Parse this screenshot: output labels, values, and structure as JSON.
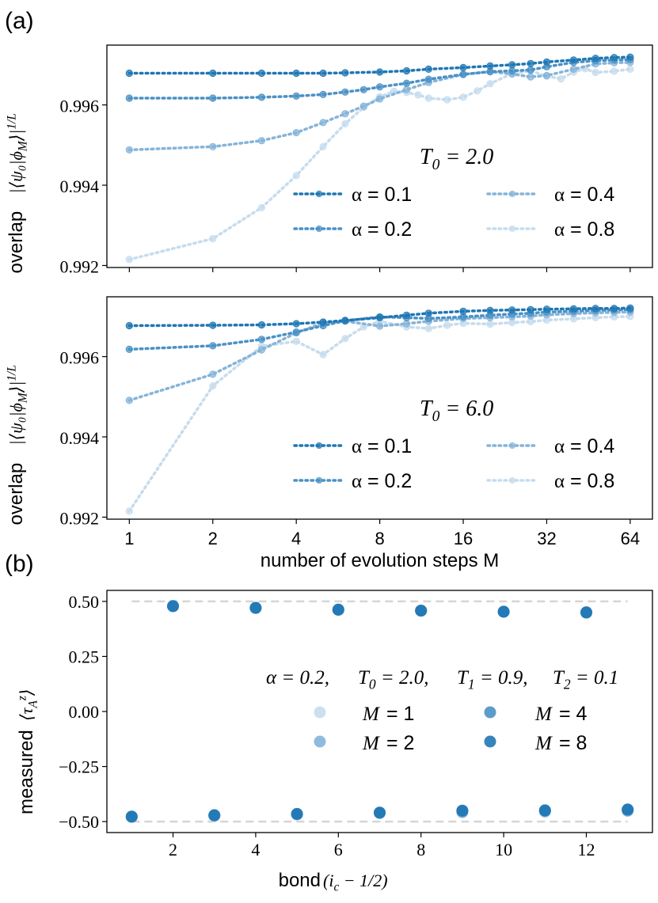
{
  "figure": {
    "panel_a_label": "(a)",
    "panel_b_label": "(b)",
    "colors": {
      "series": [
        "#1f77b4",
        "#4a91c5",
        "#85b4d9",
        "#c6dcee"
      ],
      "axis": "#000000",
      "dashed": "#d5d5d5"
    }
  },
  "chart_data": [
    {
      "id": "a1",
      "type": "line",
      "xscale": "log2",
      "xlim": [
        0.83,
        77
      ],
      "ylim": [
        0.99195,
        0.99749
      ],
      "x_ticks": [
        1,
        2,
        4,
        8,
        16,
        32,
        64
      ],
      "x_tick_labels": [
        "",
        "",
        "",
        "",
        "",
        "",
        ""
      ],
      "y_ticks": [
        0.992,
        0.994,
        0.996
      ],
      "y_tick_labels": [
        "0.992",
        "0.994",
        "0.996"
      ],
      "ylabel_text": "overlap ",
      "ylabel_math": "|⟨ψ₀|ϕ_M⟩|^{1/L}",
      "legend_title": "T_0 = 2.0",
      "legend_placement": "lower-right",
      "series": [
        {
          "name": "α = 0.1",
          "label_math": "α",
          "label_value": "= 0.1",
          "color": "#1f77b4",
          "x": [
            1,
            2,
            3,
            4,
            5,
            6,
            8,
            10,
            12,
            16,
            20,
            24,
            28,
            32,
            40,
            48,
            56,
            64
          ],
          "y": [
            0.99679,
            0.99679,
            0.99679,
            0.99679,
            0.99679,
            0.9968,
            0.99682,
            0.99685,
            0.99689,
            0.99693,
            0.99697,
            0.997,
            0.99703,
            0.99707,
            0.99712,
            0.99716,
            0.99718,
            0.99719
          ]
        },
        {
          "name": "α = 0.2",
          "label_math": "α",
          "label_value": "= 0.2",
          "color": "#4a91c5",
          "x": [
            1,
            2,
            3,
            4,
            5,
            6,
            7,
            8,
            10,
            12,
            16,
            20,
            24,
            28,
            32,
            40,
            48,
            56,
            64
          ],
          "y": [
            0.99617,
            0.99617,
            0.99619,
            0.99622,
            0.99626,
            0.99632,
            0.99638,
            0.99645,
            0.99654,
            0.99664,
            0.99676,
            0.99683,
            0.99685,
            0.99687,
            0.99695,
            0.99706,
            0.9971,
            0.99712,
            0.99713
          ]
        },
        {
          "name": "α = 0.4",
          "label_math": "α",
          "label_value": "= 0.4",
          "color": "#85b4d9",
          "x": [
            1,
            2,
            3,
            4,
            5,
            6,
            7,
            8,
            10,
            12,
            16,
            20,
            24,
            28,
            32,
            40,
            48,
            56,
            64
          ],
          "y": [
            0.99488,
            0.99496,
            0.99511,
            0.99531,
            0.99556,
            0.99578,
            0.99597,
            0.99615,
            0.99638,
            0.99656,
            0.99676,
            0.99683,
            0.99677,
            0.9967,
            0.99673,
            0.99689,
            0.99702,
            0.99705,
            0.99706
          ]
        },
        {
          "name": "α = 0.8",
          "label_math": "α",
          "label_value": "= 0.8",
          "color": "#c6dcee",
          "x": [
            1,
            2,
            3,
            4,
            5,
            6,
            7,
            8,
            9,
            10,
            11,
            12,
            14,
            16,
            18,
            20,
            24,
            28,
            32,
            36,
            40,
            44,
            48,
            56,
            64
          ],
          "y": [
            0.99215,
            0.99267,
            0.99344,
            0.99424,
            0.99496,
            0.99553,
            0.99594,
            0.9962,
            0.99634,
            0.99631,
            0.99625,
            0.99617,
            0.99613,
            0.99619,
            0.99635,
            0.99653,
            0.99678,
            0.99685,
            0.99672,
            0.99665,
            0.99682,
            0.9969,
            0.99681,
            0.99684,
            0.99689
          ]
        }
      ]
    },
    {
      "id": "a2",
      "type": "line",
      "xscale": "log2",
      "xlim": [
        0.83,
        77
      ],
      "ylim": [
        0.99195,
        0.99749
      ],
      "x_ticks": [
        1,
        2,
        4,
        8,
        16,
        32,
        64
      ],
      "x_tick_labels": [
        "1",
        "2",
        "4",
        "8",
        "16",
        "32",
        "64"
      ],
      "y_ticks": [
        0.992,
        0.994,
        0.996
      ],
      "y_tick_labels": [
        "0.992",
        "0.994",
        "0.996"
      ],
      "xlabel": "number of evolution steps M",
      "ylabel_text": "overlap ",
      "ylabel_math": "|⟨ψ₀|ϕ_M⟩|^{1/L}",
      "legend_title": "T_0 = 6.0",
      "legend_placement": "lower-right",
      "series": [
        {
          "name": "α = 0.1",
          "label_math": "α",
          "label_value": "= 0.1",
          "color": "#1f77b4",
          "x": [
            1,
            2,
            3,
            4,
            5,
            6,
            8,
            10,
            12,
            16,
            20,
            24,
            28,
            32,
            40,
            48,
            56,
            64
          ],
          "y": [
            0.99677,
            0.99678,
            0.99679,
            0.99682,
            0.99686,
            0.9969,
            0.99697,
            0.99703,
            0.99708,
            0.99713,
            0.99715,
            0.99716,
            0.99717,
            0.99718,
            0.99719,
            0.9972,
            0.9972,
            0.99721
          ]
        },
        {
          "name": "α = 0.2",
          "label_math": "α",
          "label_value": "= 0.2",
          "color": "#4a91c5",
          "x": [
            1,
            2,
            3,
            4,
            5,
            6,
            8,
            10,
            12,
            16,
            20,
            24,
            28,
            32,
            40,
            48,
            56,
            64
          ],
          "y": [
            0.99618,
            0.99627,
            0.99643,
            0.99661,
            0.99677,
            0.99689,
            0.99699,
            0.99697,
            0.99695,
            0.99699,
            0.99703,
            0.99706,
            0.99708,
            0.99711,
            0.99713,
            0.99715,
            0.99716,
            0.99717
          ]
        },
        {
          "name": "α = 0.4",
          "label_math": "α",
          "label_value": "= 0.4",
          "color": "#85b4d9",
          "x": [
            1,
            2,
            3,
            4,
            5,
            6,
            8,
            10,
            12,
            16,
            20,
            24,
            28,
            32,
            40,
            48,
            56,
            64
          ],
          "y": [
            0.99491,
            0.99556,
            0.99617,
            0.99659,
            0.99684,
            0.99688,
            0.99676,
            0.99682,
            0.99688,
            0.99695,
            0.99697,
            0.99699,
            0.99701,
            0.99704,
            0.99707,
            0.99709,
            0.9971,
            0.99711
          ]
        },
        {
          "name": "α = 0.8",
          "label_math": "α",
          "label_value": "= 0.8",
          "color": "#c6dcee",
          "x": [
            1,
            2,
            3,
            4,
            5,
            6,
            7,
            8,
            10,
            12,
            14,
            16,
            20,
            24,
            28,
            32,
            40,
            48,
            56,
            64
          ],
          "y": [
            0.99215,
            0.99527,
            0.99626,
            0.99638,
            0.99605,
            0.99645,
            0.99674,
            0.99688,
            0.99674,
            0.9967,
            0.99678,
            0.99683,
            0.99681,
            0.99685,
            0.99687,
            0.99691,
            0.99694,
            0.99697,
            0.99699,
            0.997
          ]
        }
      ]
    },
    {
      "id": "b",
      "type": "scatter",
      "xlim": [
        0.4,
        13.6
      ],
      "ylim": [
        -0.55,
        0.55
      ],
      "x_ticks": [
        2,
        4,
        6,
        8,
        10,
        12
      ],
      "x_tick_labels": [
        "2",
        "4",
        "6",
        "8",
        "10",
        "12"
      ],
      "y_ticks": [
        -0.5,
        -0.25,
        0,
        0.25,
        0.5
      ],
      "y_tick_labels": [
        "−0.50",
        "−0.25",
        "0.00",
        "0.25",
        "0.50"
      ],
      "xlabel_text": "bond ",
      "xlabel_math": "(i_c − 1/2)",
      "ylabel_text": "measured ",
      "ylabel_math": "⟨τ_A^z⟩",
      "reference_lines": [
        0.5,
        -0.5
      ],
      "legend_title_parts": [
        "α = 0.2, ",
        "T_0 = 2.0, ",
        "T_1 = 0.9, ",
        "T_2 = 0.1"
      ],
      "legend_placement": "center-right",
      "series": [
        {
          "name": "M = 1",
          "label_math": "M",
          "label_value": "= 1",
          "color": "#c6dcee",
          "x": [
            1,
            2,
            3,
            4,
            5,
            6,
            7,
            8,
            9,
            10,
            11,
            12,
            13
          ],
          "y": [
            -0.479,
            0.478,
            -0.474,
            0.471,
            -0.468,
            0.464,
            -0.462,
            0.458,
            -0.458,
            0.454,
            -0.455,
            0.451,
            -0.451
          ]
        },
        {
          "name": "M = 2",
          "label_math": "M",
          "label_value": "= 2",
          "color": "#85b4d9",
          "x": [
            1,
            2,
            3,
            4,
            5,
            6,
            7,
            8,
            9,
            10,
            11,
            12,
            13
          ],
          "y": [
            -0.479,
            0.478,
            -0.473,
            0.471,
            -0.467,
            0.463,
            -0.461,
            0.458,
            -0.457,
            0.454,
            -0.454,
            0.451,
            -0.451
          ]
        },
        {
          "name": "M = 4",
          "label_math": "M",
          "label_value": "= 4",
          "color": "#4a91c5",
          "x": [
            1,
            2,
            3,
            4,
            5,
            6,
            7,
            8,
            9,
            10,
            11,
            12,
            13
          ],
          "y": [
            -0.478,
            0.478,
            -0.472,
            0.47,
            -0.466,
            0.462,
            -0.46,
            0.458,
            -0.452,
            0.453,
            -0.45,
            0.45,
            -0.447
          ]
        },
        {
          "name": "M = 8",
          "label_math": "M",
          "label_value": "= 8",
          "color": "#1f77b4",
          "x": [
            1,
            2,
            3,
            4,
            5,
            6,
            7,
            8,
            9,
            10,
            11,
            12,
            13
          ],
          "y": [
            -0.477,
            0.479,
            -0.471,
            0.471,
            -0.465,
            0.462,
            -0.459,
            0.458,
            -0.45,
            0.453,
            -0.449,
            0.449,
            -0.445
          ]
        }
      ]
    }
  ]
}
